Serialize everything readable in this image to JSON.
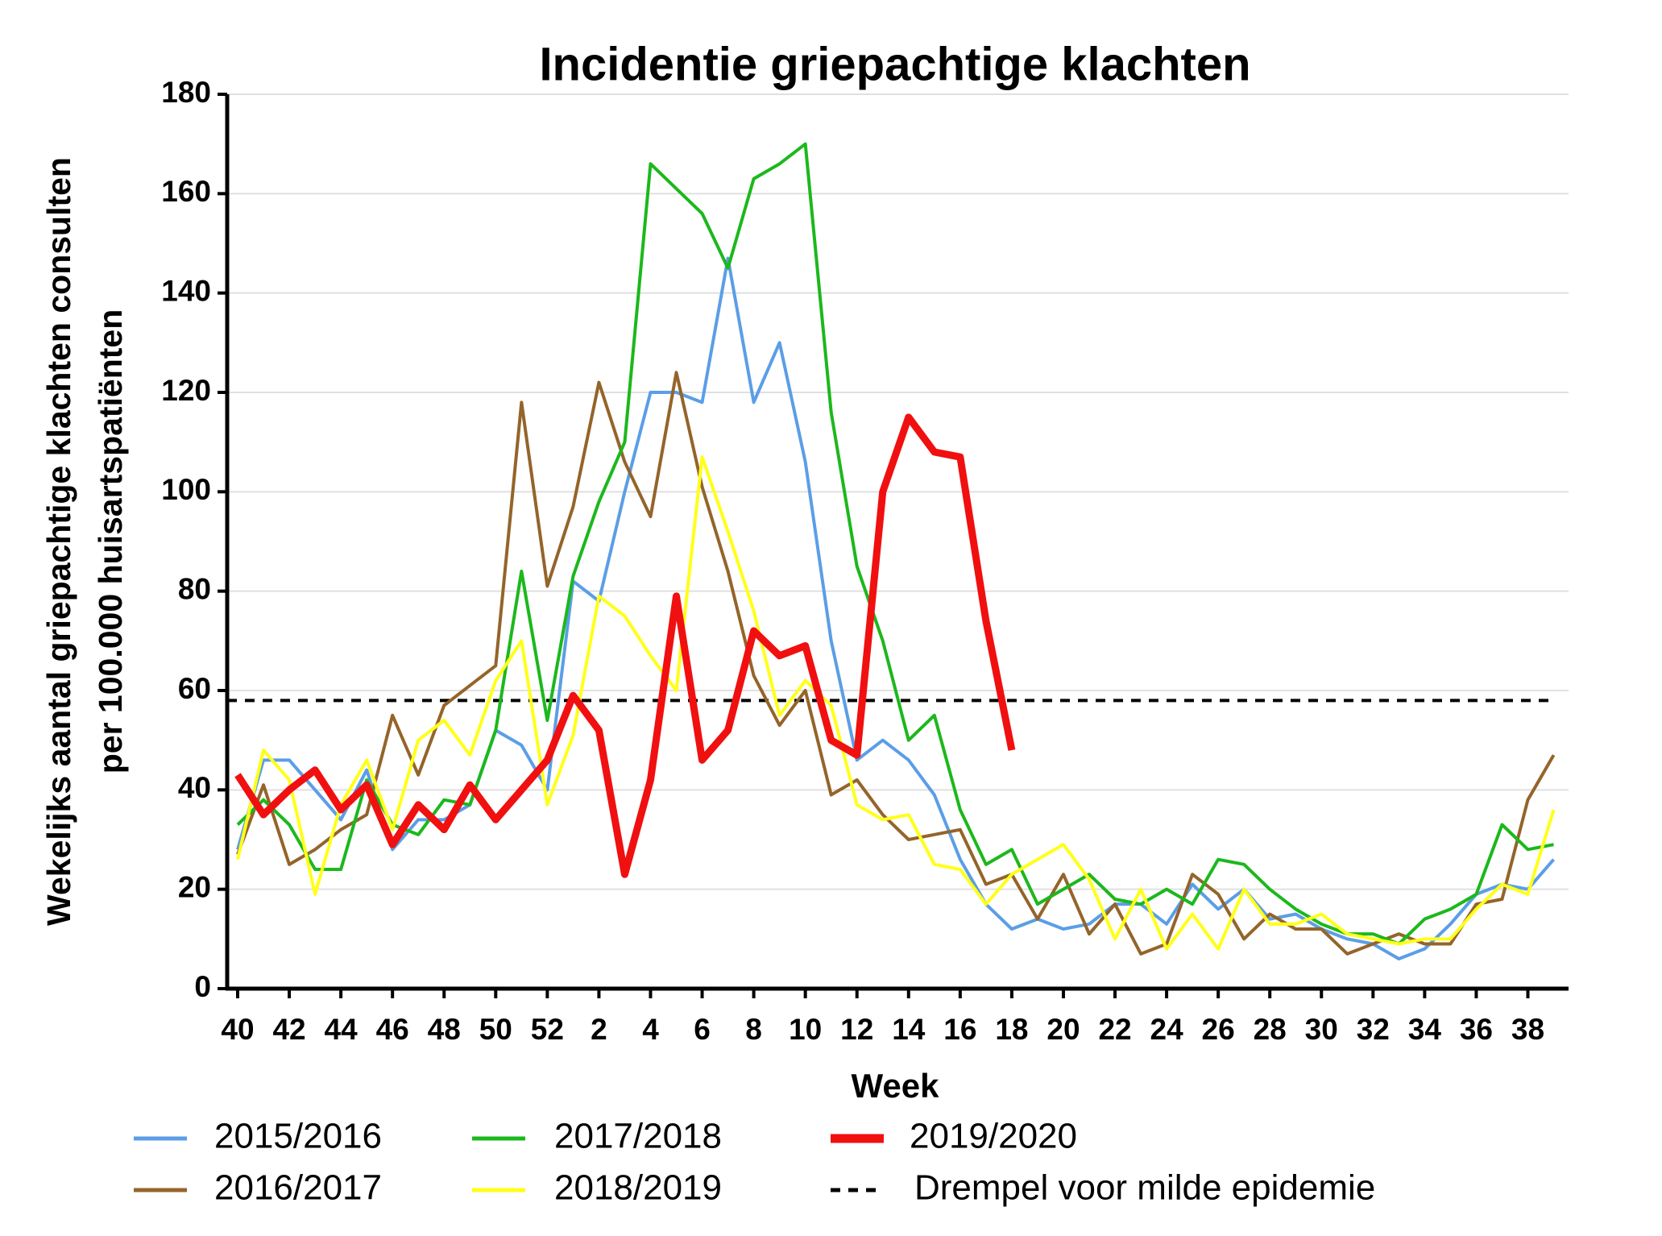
{
  "chart_data": {
    "type": "line",
    "title": "Incidentie griepachtige klachten",
    "ylabel": [
      "Wekelijks aantal griepachtige klachten consulten",
      "per 100.000 huisartspatiënten"
    ],
    "xlabel": "Week",
    "categories": [
      "40",
      null,
      "42",
      null,
      "44",
      null,
      "46",
      null,
      "48",
      null,
      "50",
      null,
      "52",
      null,
      "2",
      null,
      "4",
      null,
      "6",
      null,
      "8",
      null,
      "10",
      null,
      "12",
      null,
      "14",
      null,
      "16",
      null,
      "18",
      null,
      "20",
      null,
      "22",
      null,
      "24",
      null,
      "26",
      null,
      "28",
      null,
      "30",
      null,
      "32",
      null,
      "34",
      null,
      "36",
      null,
      "38",
      null
    ],
    "ylim": [
      0,
      180
    ],
    "yticks": [
      0,
      20,
      40,
      60,
      80,
      100,
      120,
      140,
      160,
      180
    ],
    "grid": true,
    "series": [
      {
        "name": "2015/2016",
        "color": "#5b9ee6",
        "values": [
          28,
          46,
          46,
          40,
          34,
          44,
          28,
          34,
          34,
          37,
          52,
          49,
          40,
          82,
          78,
          100,
          120,
          120,
          118,
          147,
          118,
          130,
          106,
          70,
          46,
          50,
          46,
          39,
          26,
          17,
          12,
          14,
          12,
          13,
          17,
          17,
          13,
          21,
          16,
          20,
          14,
          15,
          12,
          10,
          9,
          6,
          8,
          13,
          19,
          21,
          20,
          26
        ]
      },
      {
        "name": "2016/2017",
        "color": "#94642a",
        "values": [
          27,
          41,
          25,
          28,
          32,
          35,
          55,
          43,
          57,
          61,
          65,
          118,
          81,
          97,
          122,
          106,
          95,
          124,
          101,
          84,
          63,
          53,
          60,
          39,
          42,
          35,
          30,
          31,
          32,
          21,
          23,
          14,
          23,
          11,
          17,
          7,
          9,
          23,
          19,
          10,
          15,
          12,
          12,
          7,
          9,
          11,
          9,
          9,
          17,
          18,
          38,
          47
        ]
      },
      {
        "name": "2017/2018",
        "color": "#1cb81c",
        "values": [
          33,
          38,
          33,
          24,
          24,
          42,
          33,
          31,
          38,
          37,
          52,
          84,
          54,
          83,
          98,
          110,
          166,
          161,
          156,
          145,
          163,
          166,
          170,
          116,
          85,
          70,
          50,
          55,
          36,
          25,
          28,
          17,
          20,
          23,
          18,
          17,
          20,
          17,
          26,
          25,
          20,
          16,
          13,
          11,
          11,
          9,
          14,
          16,
          19,
          33,
          28,
          29
        ]
      },
      {
        "name": "2018/2019",
        "color": "#ffff1a",
        "values": [
          26,
          48,
          42,
          19,
          37,
          46,
          32,
          50,
          54,
          47,
          62,
          70,
          37,
          51,
          79,
          75,
          67,
          60,
          107,
          92,
          76,
          55,
          62,
          57,
          37,
          34,
          35,
          25,
          24,
          17,
          23,
          26,
          29,
          22,
          10,
          20,
          8,
          15,
          8,
          20,
          13,
          13,
          15,
          11,
          10,
          9,
          10,
          10,
          16,
          21,
          19,
          36
        ]
      },
      {
        "name": "2019/2020",
        "color": "#f01010",
        "values": [
          43,
          35,
          40,
          44,
          36,
          41,
          29,
          37,
          32,
          41,
          34,
          40,
          46,
          59,
          52,
          23,
          42,
          79,
          46,
          52,
          72,
          67,
          69,
          50,
          47,
          100,
          115,
          108,
          107,
          74,
          48,
          null,
          null,
          null,
          null,
          null,
          null,
          null,
          null,
          null,
          null,
          null,
          null,
          null,
          null,
          null,
          null,
          null,
          null,
          null,
          null,
          null
        ]
      }
    ],
    "threshold": {
      "name": "Drempel voor milde epidemie",
      "value": 58,
      "color": "#000000"
    }
  }
}
